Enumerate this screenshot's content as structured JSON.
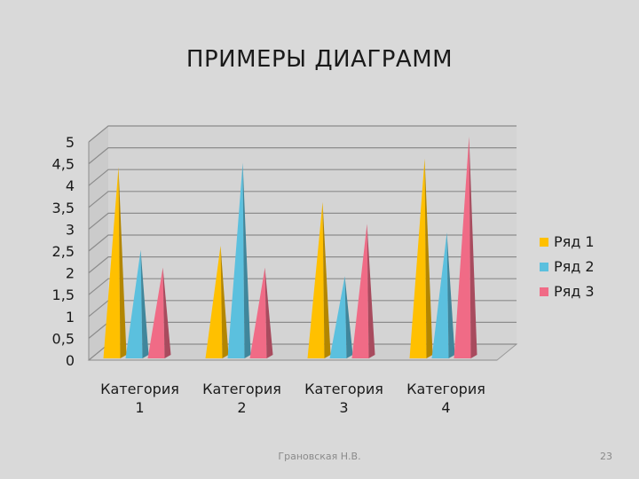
{
  "slide": {
    "title": "ПРИМЕРЫ ДИАГРАММ",
    "footer_author": "Грановская Н.В.",
    "page_number": "23"
  },
  "chart_data": {
    "type": "bar",
    "style": "3d-cone",
    "title": "",
    "xlabel": "",
    "ylabel": "",
    "ylim": [
      0,
      5
    ],
    "yticks": [
      "0",
      "0,5",
      "1",
      "1,5",
      "2",
      "2,5",
      "3",
      "3,5",
      "4",
      "4,5",
      "5"
    ],
    "grid": true,
    "legend_position": "right",
    "categories": [
      [
        "Категория",
        "1"
      ],
      [
        "Категория",
        "2"
      ],
      [
        "Категория",
        "3"
      ],
      [
        "Категория",
        "4"
      ]
    ],
    "series": [
      {
        "name": "Ряд 1",
        "color": "#ffc000",
        "values": [
          4.3,
          2.5,
          3.5,
          4.5
        ]
      },
      {
        "name": "Ряд 2",
        "color": "#5bc0de",
        "values": [
          2.4,
          4.4,
          1.8,
          2.8
        ]
      },
      {
        "name": "Ряд 3",
        "color": "#f06b86",
        "values": [
          2.0,
          2.0,
          3.0,
          5.0
        ]
      }
    ]
  }
}
